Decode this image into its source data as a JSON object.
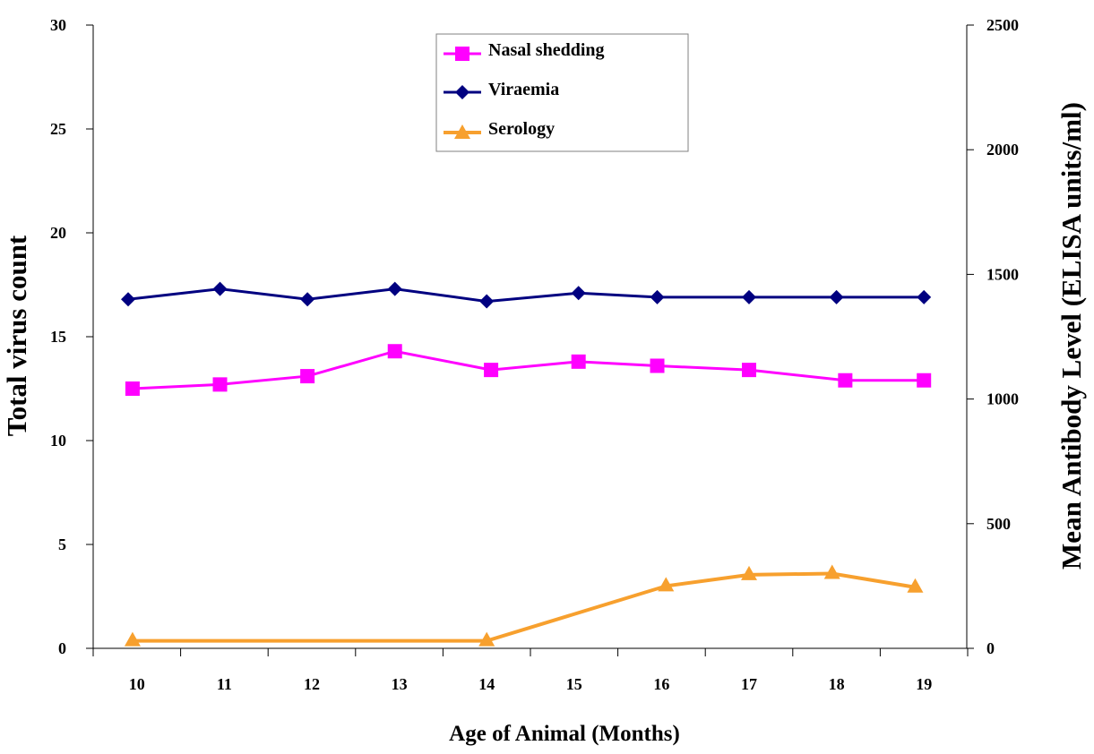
{
  "chart_data": {
    "type": "line",
    "title": "",
    "xlabel": "Age of Animal (Months)",
    "ylabel": "Total virus count",
    "y2label": "Mean Antibody Level (ELISA units/ml)",
    "x": [
      "10",
      "11",
      "12",
      "13",
      "14",
      "15",
      "16",
      "17",
      "18",
      "19"
    ],
    "ylim": [
      0,
      30
    ],
    "y2lim": [
      0,
      2500
    ],
    "yticks": [
      "0",
      "5",
      "10",
      "15",
      "20",
      "25",
      "30"
    ],
    "y2ticks": [
      "0",
      "500",
      "1000",
      "1500",
      "2000",
      "2500"
    ],
    "legend_position": "top-center",
    "grid": false,
    "series": [
      {
        "name": "Nasal shedding",
        "axis": "left",
        "marker": "square",
        "color": "#FF00FF",
        "x": [
          9.95,
          10.95,
          11.95,
          12.95,
          14.05,
          15.05,
          15.95,
          17.0,
          18.1,
          19.0
        ],
        "values": [
          12.5,
          12.7,
          13.1,
          14.3,
          13.4,
          13.8,
          13.6,
          13.4,
          12.9,
          12.9
        ]
      },
      {
        "name": "Viraemia",
        "axis": "left",
        "marker": "diamond",
        "color": "#000080",
        "x": [
          9.9,
          10.95,
          11.95,
          12.95,
          14.0,
          15.05,
          15.95,
          17.0,
          18.0,
          19.0
        ],
        "values": [
          16.8,
          17.3,
          16.8,
          17.3,
          16.7,
          17.1,
          16.9,
          16.9,
          16.9,
          16.9
        ]
      },
      {
        "name": "Serology",
        "axis": "right",
        "marker": "triangle",
        "color": "#F7A02E",
        "x": [
          9.95,
          14.0,
          16.05,
          17.0,
          17.95,
          18.9
        ],
        "values": [
          30,
          30,
          250,
          295,
          300,
          245
        ]
      }
    ]
  }
}
